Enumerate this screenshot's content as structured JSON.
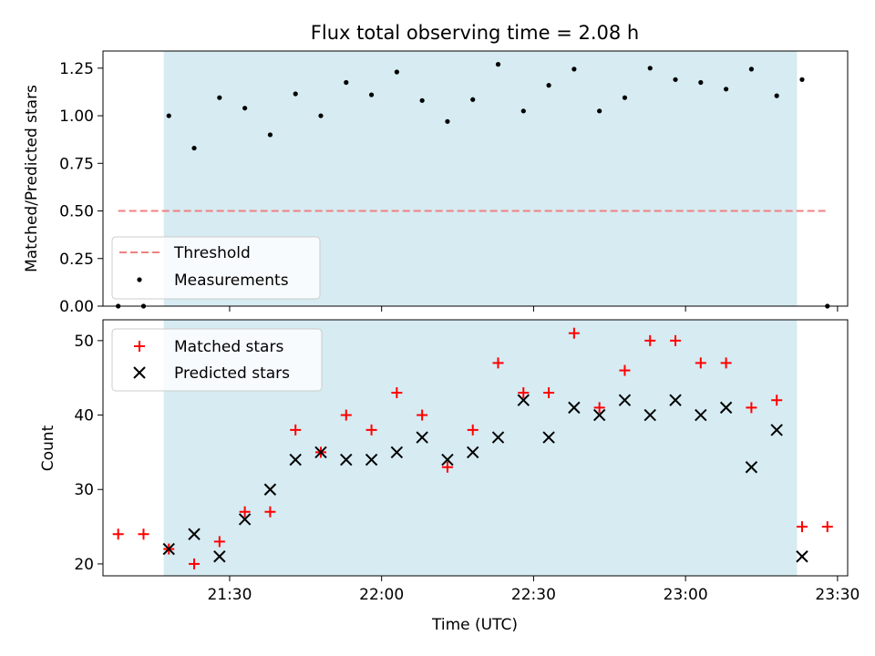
{
  "chart_data": [
    {
      "type": "scatter",
      "title": "Flux total observing time = 2.08 h",
      "ylabel": "Matched/Predicted stars",
      "xlabel": "",
      "ylim": [
        0,
        1.34
      ],
      "xlim": [
        "21:05",
        "23:32"
      ],
      "yticks": [
        "0.00",
        "0.25",
        "0.50",
        "0.75",
        "1.00",
        "1.25"
      ],
      "shaded_region": [
        "21:17",
        "23:22"
      ],
      "shade_color": "#add8e6",
      "legend_position": "lower-left",
      "legend": [
        {
          "label": "Threshold",
          "marker": "dashed-line",
          "color": "#f08080"
        },
        {
          "label": "Measurements",
          "marker": "dot",
          "color": "#000000"
        }
      ],
      "threshold": {
        "name": "Threshold",
        "y": 0.5,
        "x_start": "21:08",
        "x_end": "23:28",
        "color": "#f08080"
      },
      "series": [
        {
          "name": "Measurements",
          "color": "#000000",
          "x": [
            "21:08",
            "21:13",
            "21:18",
            "21:23",
            "21:28",
            "21:33",
            "21:38",
            "21:43",
            "21:48",
            "21:53",
            "21:58",
            "22:03",
            "22:08",
            "22:13",
            "22:18",
            "22:23",
            "22:28",
            "22:33",
            "22:38",
            "22:43",
            "22:48",
            "22:53",
            "22:58",
            "23:03",
            "23:08",
            "23:13",
            "23:18",
            "23:23",
            "23:28"
          ],
          "values": [
            0.0,
            0.0,
            1.0,
            0.83,
            1.095,
            1.04,
            0.9,
            1.115,
            1.0,
            1.175,
            1.11,
            1.23,
            1.08,
            0.97,
            1.085,
            1.27,
            1.025,
            1.16,
            1.245,
            1.025,
            1.095,
            1.25,
            1.19,
            1.175,
            1.14,
            1.245,
            1.105,
            1.19,
            0.0
          ]
        }
      ]
    },
    {
      "type": "scatter",
      "title": "",
      "ylabel": "Count",
      "xlabel": "Time (UTC)",
      "ylim": [
        18.4,
        52.8
      ],
      "xlim": [
        "21:05",
        "23:32"
      ],
      "yticks": [
        "20",
        "30",
        "40",
        "50"
      ],
      "xticks": [
        "21:30",
        "22:00",
        "22:30",
        "23:00",
        "23:30"
      ],
      "shaded_region": [
        "21:17",
        "23:22"
      ],
      "shade_color": "#add8e6",
      "legend_position": "upper-left",
      "legend": [
        {
          "label": "Matched stars",
          "marker": "plus",
          "color": "#ff0000"
        },
        {
          "label": "Predicted stars",
          "marker": "x",
          "color": "#000000"
        }
      ],
      "series": [
        {
          "name": "Matched stars",
          "color": "#ff0000",
          "x": [
            "21:08",
            "21:13",
            "21:18",
            "21:23",
            "21:28",
            "21:33",
            "21:38",
            "21:43",
            "21:48",
            "21:53",
            "21:58",
            "22:03",
            "22:08",
            "22:13",
            "22:18",
            "22:23",
            "22:28",
            "22:33",
            "22:38",
            "22:43",
            "22:48",
            "22:53",
            "22:58",
            "23:03",
            "23:08",
            "23:13",
            "23:18",
            "23:23",
            "23:28"
          ],
          "values": [
            24,
            24,
            22,
            20,
            23,
            27,
            27,
            38,
            35,
            40,
            38,
            43,
            40,
            33,
            38,
            47,
            43,
            43,
            51,
            41,
            46,
            50,
            50,
            47,
            47,
            41,
            42,
            25,
            25
          ]
        },
        {
          "name": "Predicted stars",
          "color": "#000000",
          "x": [
            "21:18",
            "21:23",
            "21:28",
            "21:33",
            "21:38",
            "21:43",
            "21:48",
            "21:53",
            "21:58",
            "22:03",
            "22:08",
            "22:13",
            "22:18",
            "22:23",
            "22:28",
            "22:33",
            "22:38",
            "22:43",
            "22:48",
            "22:53",
            "22:58",
            "23:03",
            "23:08",
            "23:13",
            "23:18",
            "23:23"
          ],
          "values": [
            22,
            24,
            21,
            26,
            30,
            34,
            35,
            34,
            34,
            35,
            37,
            34,
            35,
            37,
            42,
            37,
            41,
            40,
            42,
            40,
            42,
            40,
            41,
            33,
            38,
            21
          ]
        }
      ]
    }
  ]
}
